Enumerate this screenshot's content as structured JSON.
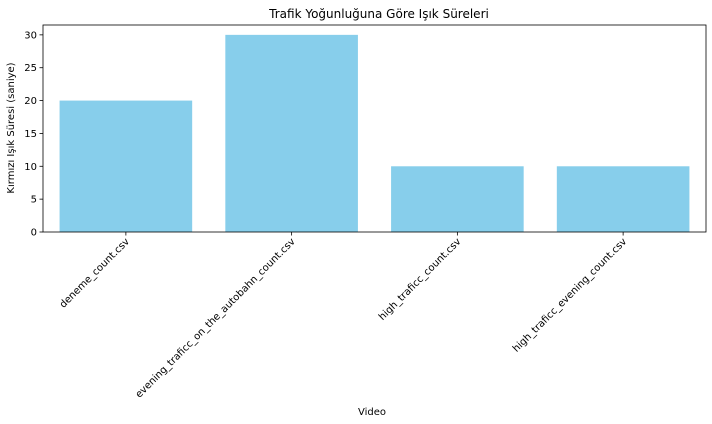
{
  "chart_data": {
    "type": "bar",
    "title": "Trafik Yoğunluğuna Göre Işık Süreleri",
    "xlabel": "Video",
    "ylabel": "Kırmızı Işık Süresi (saniye)",
    "categories": [
      "deneme_count.csv",
      "evening_traficc_on_the_autobahn_count.csv",
      "high_traficc_count.csv",
      "high_traficc_evening_count.csv"
    ],
    "values": [
      20,
      30,
      10,
      10
    ],
    "ylim": [
      0,
      31.5
    ],
    "yticks": [
      0,
      5,
      10,
      15,
      20,
      25,
      30
    ],
    "bar_color": "#87CEEB",
    "grid": false,
    "x_tick_rotation": 45
  }
}
